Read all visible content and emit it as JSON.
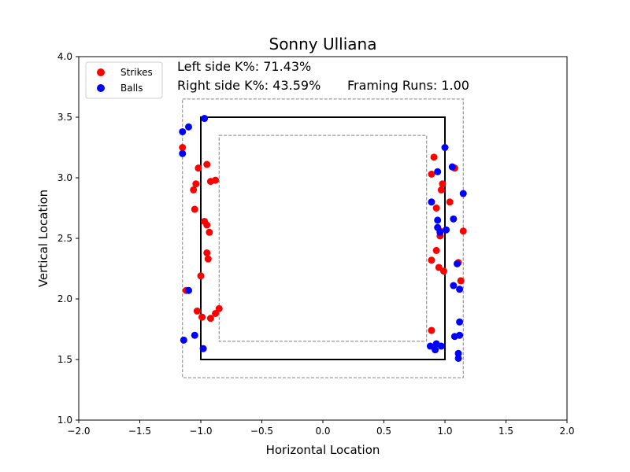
{
  "chart_data": {
    "type": "scatter",
    "title": "Sonny Ulliana",
    "xlabel": "Horizontal Location",
    "ylabel": "Vertical Location",
    "xlim": [
      -2.0,
      2.0
    ],
    "ylim": [
      1.0,
      4.0
    ],
    "xticks": [
      "−2.0",
      "−1.5",
      "−1.0",
      "−0.5",
      "0.0",
      "0.5",
      "1.0",
      "1.5",
      "2.0"
    ],
    "xtick_values": [
      -2.0,
      -1.5,
      -1.0,
      -0.5,
      0.0,
      0.5,
      1.0,
      1.5,
      2.0
    ],
    "yticks": [
      "1.0",
      "1.5",
      "2.0",
      "2.5",
      "3.0",
      "3.5",
      "4.0"
    ],
    "ytick_values": [
      1.0,
      1.5,
      2.0,
      2.5,
      3.0,
      3.5,
      4.0
    ],
    "grid": false,
    "legend_position": "top-left",
    "annotations": {
      "left_k": "Left side K%: 71.43%",
      "right_k": "Right side K%: 43.59%",
      "framing": "Framing Runs: 1.00"
    },
    "strike_zone": {
      "x": [
        -1.0,
        1.0
      ],
      "y": [
        1.5,
        3.5
      ]
    },
    "outer_zone": {
      "x": [
        -1.15,
        1.15
      ],
      "y": [
        1.35,
        3.65
      ]
    },
    "inner_zone": {
      "x": [
        -0.85,
        0.85
      ],
      "y": [
        1.65,
        3.35
      ]
    },
    "series": [
      {
        "name": "Strikes",
        "color": "#ff0000",
        "points": [
          [
            -1.15,
            3.25
          ],
          [
            -1.02,
            3.08
          ],
          [
            -0.95,
            3.11
          ],
          [
            -1.04,
            2.95
          ],
          [
            -1.06,
            2.9
          ],
          [
            -0.92,
            2.97
          ],
          [
            -0.88,
            2.98
          ],
          [
            -1.05,
            2.74
          ],
          [
            -0.97,
            2.64
          ],
          [
            -0.95,
            2.61
          ],
          [
            -0.93,
            2.55
          ],
          [
            -0.95,
            2.38
          ],
          [
            -0.94,
            2.33
          ],
          [
            -1.0,
            2.19
          ],
          [
            -1.12,
            2.07
          ],
          [
            -1.03,
            1.9
          ],
          [
            -0.99,
            1.85
          ],
          [
            -0.92,
            1.84
          ],
          [
            -0.88,
            1.88
          ],
          [
            -0.85,
            1.92
          ],
          [
            0.91,
            3.17
          ],
          [
            0.89,
            3.03
          ],
          [
            1.08,
            3.08
          ],
          [
            0.98,
            2.95
          ],
          [
            0.97,
            2.9
          ],
          [
            1.04,
            2.8
          ],
          [
            0.93,
            2.75
          ],
          [
            0.96,
            2.56
          ],
          [
            0.96,
            2.52
          ],
          [
            0.93,
            2.4
          ],
          [
            0.89,
            2.32
          ],
          [
            0.95,
            2.26
          ],
          [
            0.99,
            2.23
          ],
          [
            1.11,
            2.3
          ],
          [
            1.13,
            2.15
          ],
          [
            1.15,
            2.56
          ],
          [
            0.89,
            1.74
          ]
        ]
      },
      {
        "name": "Balls",
        "color": "#0000ff",
        "points": [
          [
            -0.97,
            3.49
          ],
          [
            -1.1,
            3.42
          ],
          [
            -1.15,
            3.38
          ],
          [
            -1.15,
            3.2
          ],
          [
            -1.1,
            2.07
          ],
          [
            -1.05,
            1.7
          ],
          [
            -1.14,
            1.66
          ],
          [
            -0.98,
            1.59
          ],
          [
            1.0,
            3.25
          ],
          [
            1.06,
            3.09
          ],
          [
            0.94,
            3.05
          ],
          [
            0.89,
            2.8
          ],
          [
            0.94,
            2.65
          ],
          [
            1.07,
            2.66
          ],
          [
            0.94,
            2.59
          ],
          [
            0.96,
            2.55
          ],
          [
            1.01,
            2.57
          ],
          [
            1.15,
            2.87
          ],
          [
            1.1,
            2.29
          ],
          [
            1.07,
            2.11
          ],
          [
            1.12,
            2.08
          ],
          [
            1.12,
            1.81
          ],
          [
            1.12,
            1.7
          ],
          [
            1.08,
            1.69
          ],
          [
            0.88,
            1.61
          ],
          [
            0.92,
            1.58
          ],
          [
            0.93,
            1.63
          ],
          [
            0.97,
            1.61
          ],
          [
            1.11,
            1.55
          ],
          [
            1.11,
            1.51
          ]
        ]
      }
    ]
  }
}
